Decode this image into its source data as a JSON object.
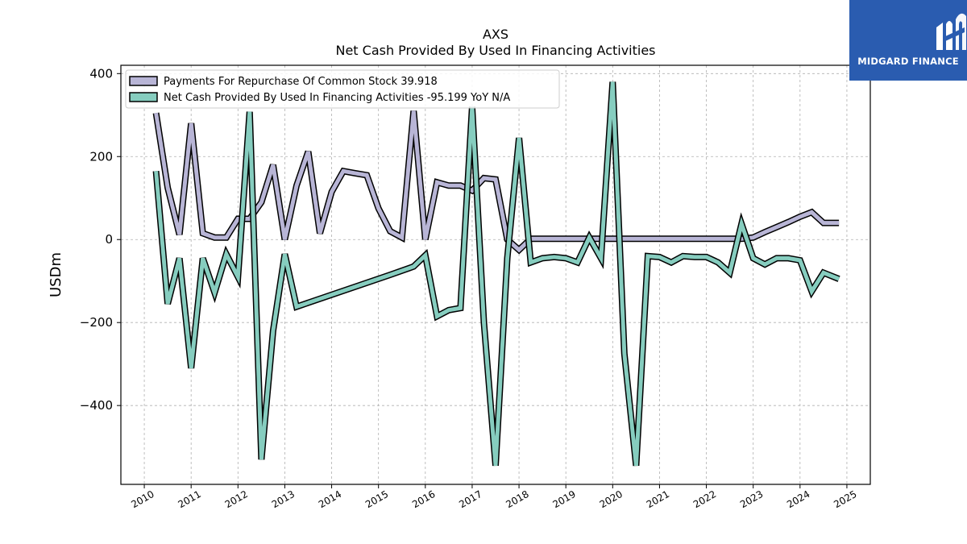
{
  "brand": {
    "name": "MIDGARD FINANCE",
    "bg_color": "#2a5cb0",
    "icon": "midgard-m-icon"
  },
  "chart_data": {
    "type": "line",
    "title": "AXS",
    "subtitle": "Net Cash Provided By Used In Financing Activities",
    "xlabel": "",
    "ylabel": "USDm",
    "xlim": [
      2009.5,
      2025.5
    ],
    "ylim": [
      -590,
      420
    ],
    "xticks": [
      2010,
      2011,
      2012,
      2013,
      2014,
      2015,
      2016,
      2017,
      2018,
      2019,
      2020,
      2021,
      2022,
      2023,
      2024,
      2025
    ],
    "yticks": [
      -400,
      -200,
      0,
      200,
      400
    ],
    "ytick_labels": [
      "−400",
      "−200",
      "0",
      "200",
      "400"
    ],
    "grid": true,
    "legend_position": "top-left",
    "series": [
      {
        "name": "Payments For Repurchase Of Common Stock  39.918",
        "color": "#b8b5d6",
        "points": [
          [
            2010.25,
            305
          ],
          [
            2010.5,
            125
          ],
          [
            2010.75,
            12
          ],
          [
            2011.0,
            280
          ],
          [
            2011.25,
            15
          ],
          [
            2011.5,
            5
          ],
          [
            2011.75,
            5
          ],
          [
            2012.0,
            50
          ],
          [
            2012.25,
            50
          ],
          [
            2012.5,
            90
          ],
          [
            2012.75,
            180
          ],
          [
            2013.0,
            0
          ],
          [
            2013.25,
            130
          ],
          [
            2013.5,
            212
          ],
          [
            2013.75,
            15
          ],
          [
            2014.0,
            115
          ],
          [
            2014.25,
            165
          ],
          [
            2014.5,
            160
          ],
          [
            2014.75,
            155
          ],
          [
            2015.0,
            75
          ],
          [
            2015.25,
            20
          ],
          [
            2015.5,
            5
          ],
          [
            2015.75,
            310
          ],
          [
            2016.0,
            0
          ],
          [
            2016.25,
            138
          ],
          [
            2016.5,
            130
          ],
          [
            2016.75,
            130
          ],
          [
            2017.0,
            118
          ],
          [
            2017.25,
            148
          ],
          [
            2017.5,
            145
          ],
          [
            2017.75,
            0
          ],
          [
            2018.0,
            -25
          ],
          [
            2018.25,
            2
          ],
          [
            2018.5,
            2
          ],
          [
            2018.75,
            2
          ],
          [
            2019.0,
            2
          ],
          [
            2019.25,
            2
          ],
          [
            2019.5,
            2
          ],
          [
            2019.75,
            2
          ],
          [
            2020.0,
            2
          ],
          [
            2020.25,
            2
          ],
          [
            2020.5,
            2
          ],
          [
            2020.75,
            2
          ],
          [
            2021.0,
            2
          ],
          [
            2021.25,
            2
          ],
          [
            2021.5,
            2
          ],
          [
            2021.75,
            2
          ],
          [
            2022.0,
            2
          ],
          [
            2022.25,
            2
          ],
          [
            2022.5,
            2
          ],
          [
            2022.75,
            2
          ],
          [
            2023.0,
            5
          ],
          [
            2023.25,
            18
          ],
          [
            2023.5,
            30
          ],
          [
            2023.75,
            42
          ],
          [
            2024.0,
            55
          ],
          [
            2024.25,
            66
          ],
          [
            2024.5,
            40
          ],
          [
            2024.83,
            40
          ]
        ]
      },
      {
        "name": "Net Cash Provided By Used In Financing Activities  -95.199 YoY N/A",
        "color": "#86cdbf",
        "points": [
          [
            2010.25,
            165
          ],
          [
            2010.5,
            -155
          ],
          [
            2010.75,
            -45
          ],
          [
            2011.0,
            -310
          ],
          [
            2011.25,
            -45
          ],
          [
            2011.5,
            -128
          ],
          [
            2011.75,
            -35
          ],
          [
            2012.0,
            -90
          ],
          [
            2012.25,
            308
          ],
          [
            2012.5,
            -530
          ],
          [
            2012.75,
            -220
          ],
          [
            2013.0,
            -35
          ],
          [
            2013.25,
            -162
          ],
          [
            2015.25,
            -85
          ],
          [
            2015.75,
            -65
          ],
          [
            2016.0,
            -38
          ],
          [
            2016.25,
            -185
          ],
          [
            2016.5,
            -170
          ],
          [
            2016.75,
            -165
          ],
          [
            2017.0,
            320
          ],
          [
            2017.25,
            -200
          ],
          [
            2017.5,
            -545
          ],
          [
            2017.75,
            -45
          ],
          [
            2018.0,
            245
          ],
          [
            2018.25,
            -55
          ],
          [
            2018.5,
            -45
          ],
          [
            2018.75,
            -42
          ],
          [
            2019.0,
            -45
          ],
          [
            2019.25,
            -55
          ],
          [
            2019.5,
            5
          ],
          [
            2019.75,
            -45
          ],
          [
            2020.0,
            380
          ],
          [
            2020.25,
            -275
          ],
          [
            2020.5,
            -545
          ],
          [
            2020.75,
            -40
          ],
          [
            2021.0,
            -42
          ],
          [
            2021.25,
            -55
          ],
          [
            2021.5,
            -40
          ],
          [
            2021.75,
            -42
          ],
          [
            2022.0,
            -42
          ],
          [
            2022.25,
            -55
          ],
          [
            2022.5,
            -80
          ],
          [
            2022.75,
            38
          ],
          [
            2023.0,
            -45
          ],
          [
            2023.25,
            -60
          ],
          [
            2023.5,
            -45
          ],
          [
            2023.75,
            -45
          ],
          [
            2024.0,
            -50
          ],
          [
            2024.25,
            -125
          ],
          [
            2024.5,
            -80
          ],
          [
            2024.83,
            -95
          ]
        ]
      }
    ]
  }
}
